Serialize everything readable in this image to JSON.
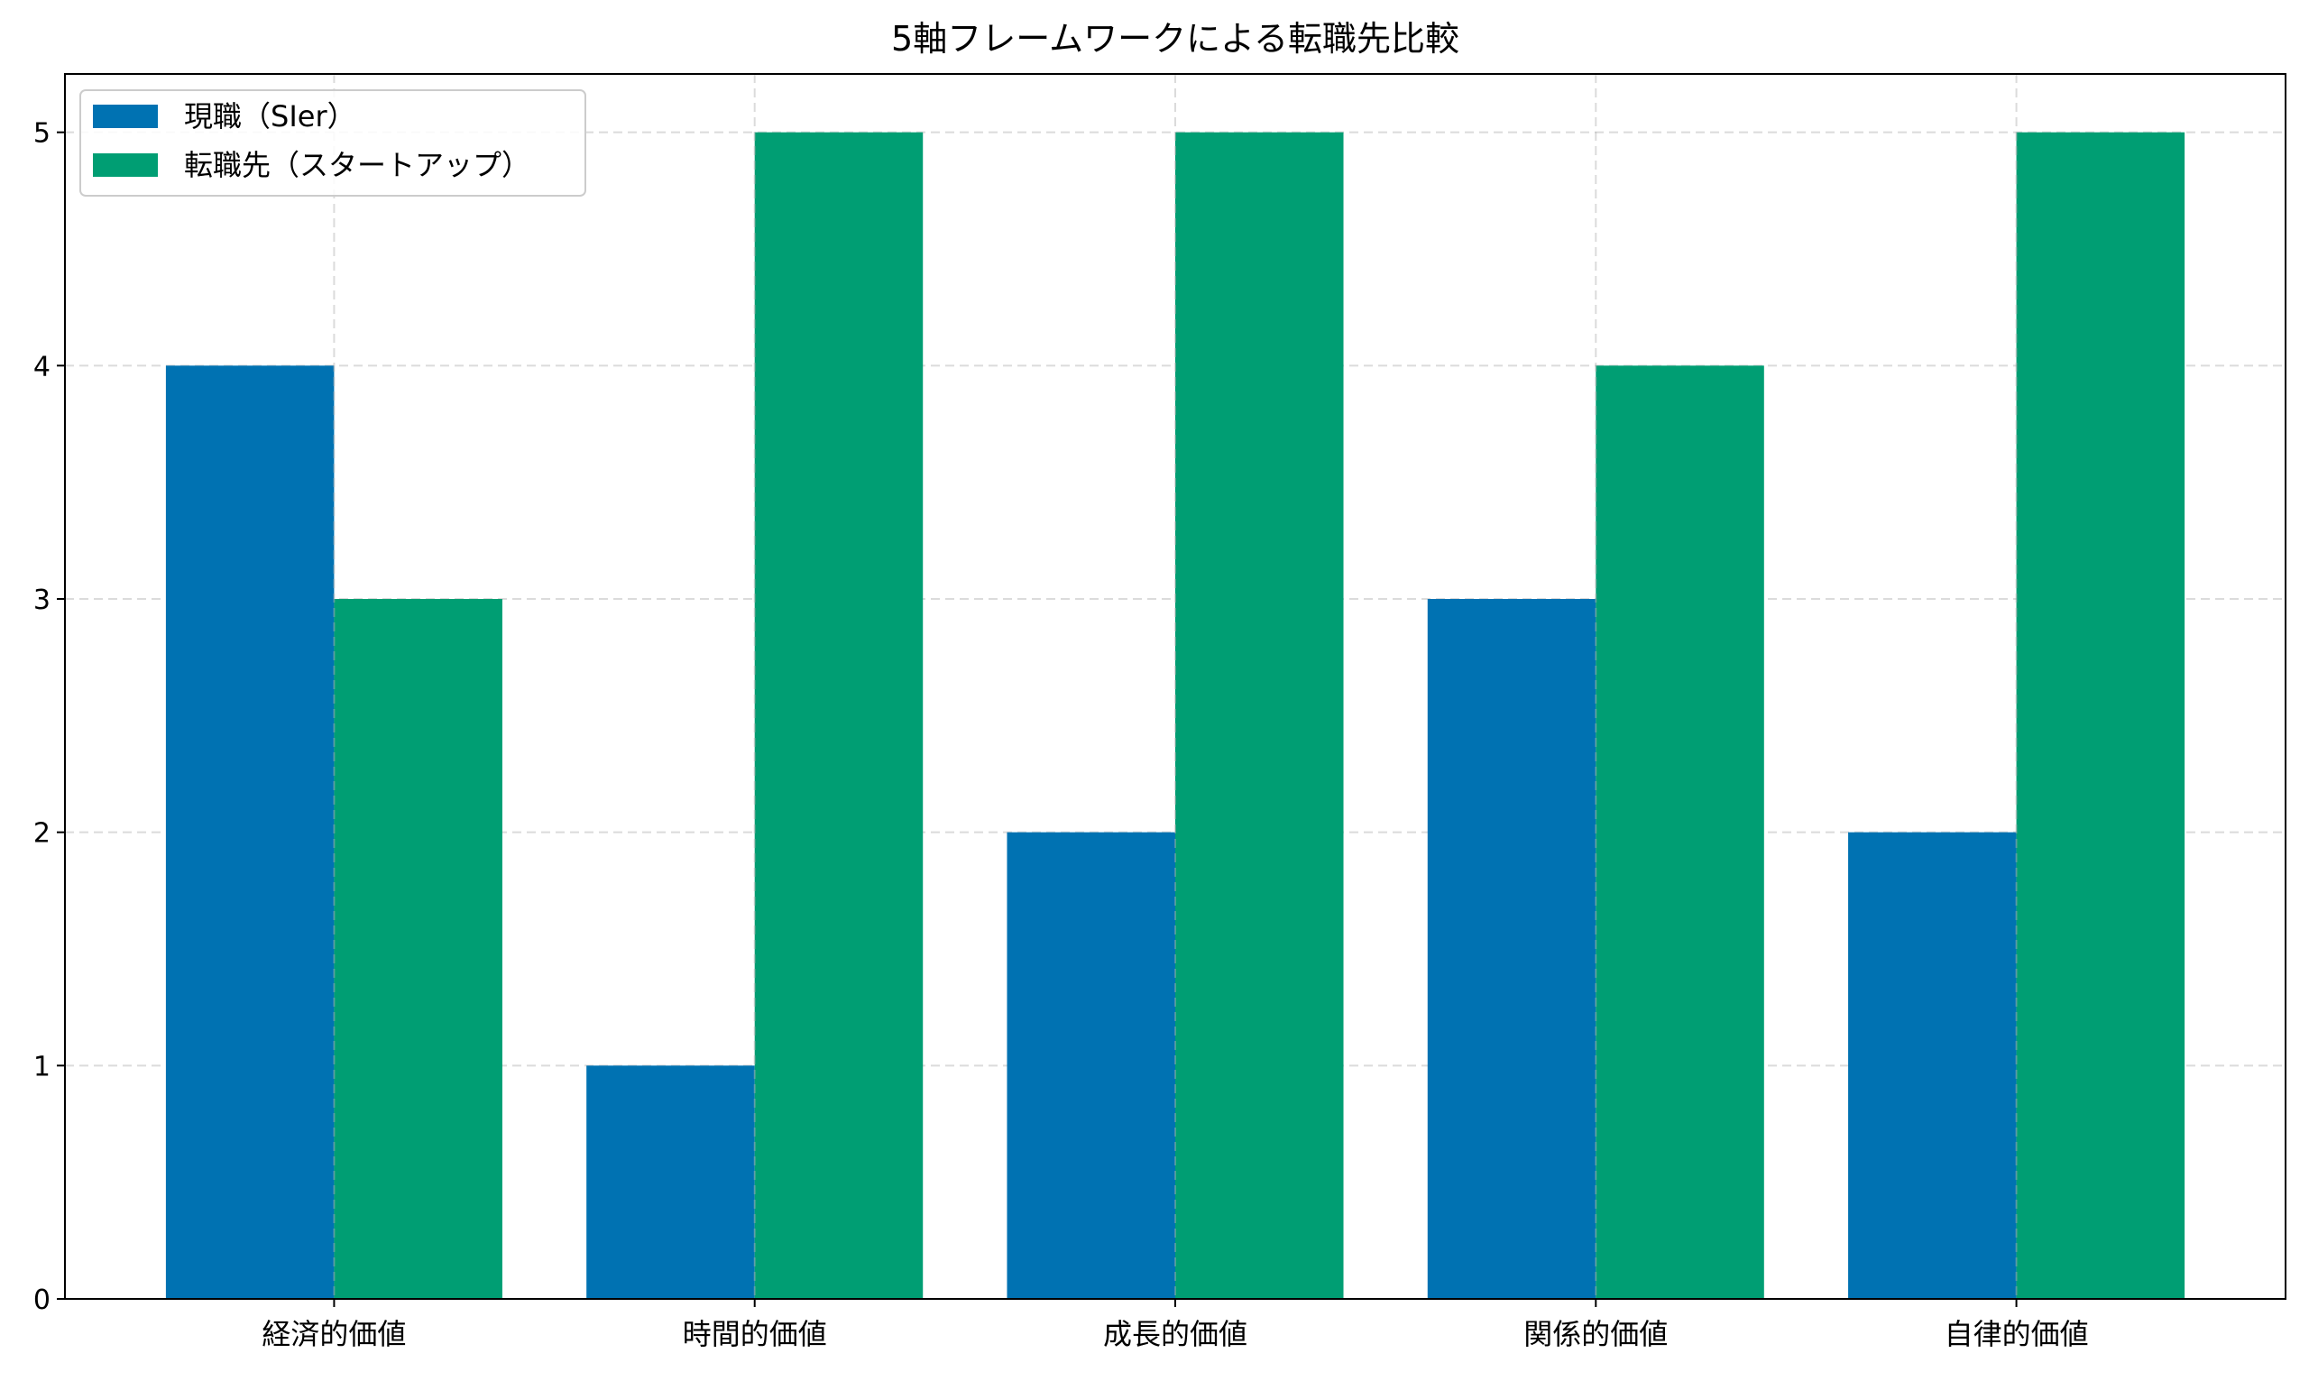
{
  "chart_data": {
    "type": "bar",
    "title": "5軸フレームワークによる転職先比較",
    "xlabel": "",
    "ylabel": "",
    "categories": [
      "経済的価値",
      "時間的価値",
      "成長的価値",
      "関係的価値",
      "自律的価値"
    ],
    "series": [
      {
        "name": "現職（SIer）",
        "values": [
          4,
          1,
          2,
          3,
          2
        ],
        "color": "#0072B2"
      },
      {
        "name": "転職先（スタートアップ）",
        "values": [
          3,
          5,
          5,
          4,
          5
        ],
        "color": "#009E73"
      }
    ],
    "ylim": [
      0,
      5.25
    ],
    "yticks": [
      0,
      1,
      2,
      3,
      4,
      5
    ],
    "grid": true,
    "grid_style": "dashed",
    "legend_position": "top-left"
  }
}
